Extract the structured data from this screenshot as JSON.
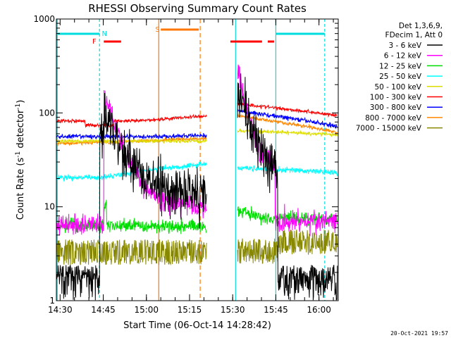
{
  "chart_data": {
    "type": "line",
    "title": "RHESSI Observing Summary Count Rates",
    "xlabel": "Start Time (06-Oct-14 14:28:42)",
    "ylabel_main": "Count Rate (s",
    "ylabel_sup1": "-1",
    "ylabel_mid": " detector",
    "ylabel_sup2": "-1",
    "ylabel_end": ")",
    "yscale": "log",
    "ylim": [
      1,
      1000
    ],
    "xlim_minutes_after_1428_42": [
      0,
      98
    ],
    "xticks": [
      {
        "label": "14:30",
        "minutes": 1.3
      },
      {
        "label": "14:45",
        "minutes": 16.3
      },
      {
        "label": "15:00",
        "minutes": 31.3
      },
      {
        "label": "15:15",
        "minutes": 46.3
      },
      {
        "label": "15:30",
        "minutes": 61.3
      },
      {
        "label": "15:45",
        "minutes": 76.3
      },
      {
        "label": "16:00",
        "minutes": 91.3
      }
    ],
    "yticks": [
      {
        "label": "1",
        "value": 1
      },
      {
        "label": "10",
        "value": 10
      },
      {
        "label": "100",
        "value": 100
      },
      {
        "label": "1000",
        "value": 1000
      }
    ],
    "legend_header": [
      "Det 1,3,6,9,",
      "FDecim 1, Att 0"
    ],
    "legend_position": "right",
    "series": [
      {
        "name": "3 - 6 keV",
        "color": "#000000"
      },
      {
        "name": "6 - 12 keV",
        "color": "#ff00ff"
      },
      {
        "name": "12 - 25 keV",
        "color": "#00dd00"
      },
      {
        "name": "25 - 50 keV",
        "color": "#00ffff"
      },
      {
        "name": "50 - 100 keV",
        "color": "#dddd00"
      },
      {
        "name": "100 - 300 keV",
        "color": "#ff0000"
      },
      {
        "name": "300 - 800 keV",
        "color": "#0000ff"
      },
      {
        "name": "800 - 7000 keV",
        "color": "#ff8800"
      },
      {
        "name": "7000 - 15000 keV",
        "color": "#888800"
      }
    ],
    "flags": [
      {
        "label": "N",
        "color": "#00dddd"
      },
      {
        "label": "F",
        "color": "#ff0000"
      },
      {
        "label": "S",
        "color": "#ff7700"
      }
    ],
    "footer_date": "20-Oct-2021 19:57"
  }
}
